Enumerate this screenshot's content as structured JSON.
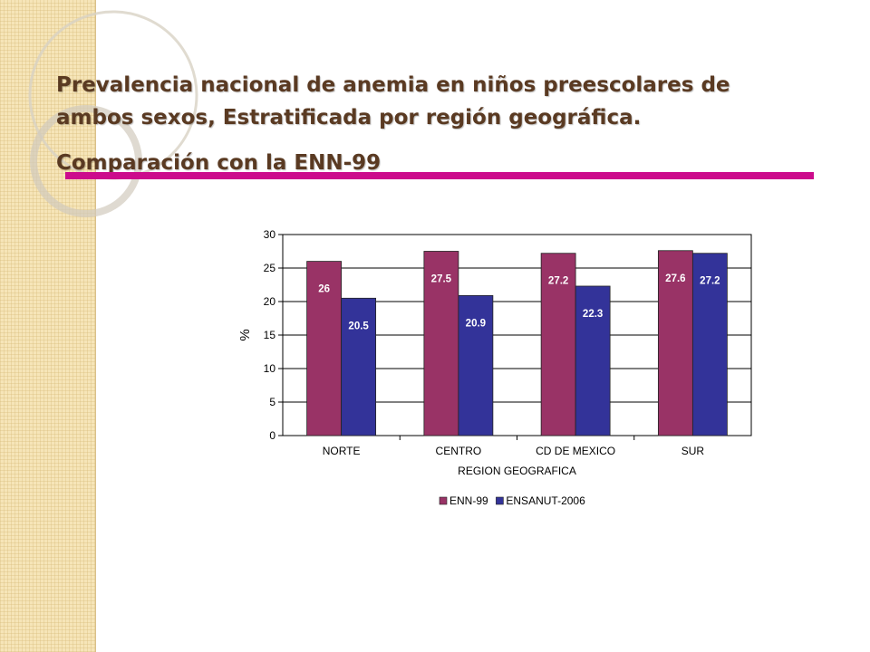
{
  "slide": {
    "title_line1": "Prevalencia nacional de anemia en niños preescolares de",
    "title_line2": "ambos sexos, Estratificada por región geográfica.",
    "subtitle": "Comparación con la ENN-99",
    "accent_color": "#cc0b8c",
    "title_color": "#5a3a22"
  },
  "chart_data": {
    "type": "bar",
    "categories": [
      "NORTE",
      "CENTRO",
      "CD DE MEXICO",
      "SUR"
    ],
    "series": [
      {
        "name": "ENN-99",
        "values": [
          26,
          27.5,
          27.2,
          27.6
        ],
        "color": "#993366"
      },
      {
        "name": "ENSANUT-2006",
        "values": [
          20.5,
          20.9,
          22.3,
          27.2
        ],
        "color": "#333399"
      }
    ],
    "data_labels": {
      "ENN-99": [
        "26",
        "27.5",
        "27.2",
        "27.6"
      ],
      "ENSANUT-2006": [
        "20.5",
        "20.9",
        "22.3",
        "27.2"
      ]
    },
    "title": "",
    "xlabel": "REGION GEOGRAFICA",
    "ylabel": "%",
    "ylim": [
      0,
      30
    ],
    "yticks": [
      "0",
      "5",
      "10",
      "15",
      "20",
      "25",
      "30"
    ],
    "grid": true,
    "legend": "bottom"
  }
}
